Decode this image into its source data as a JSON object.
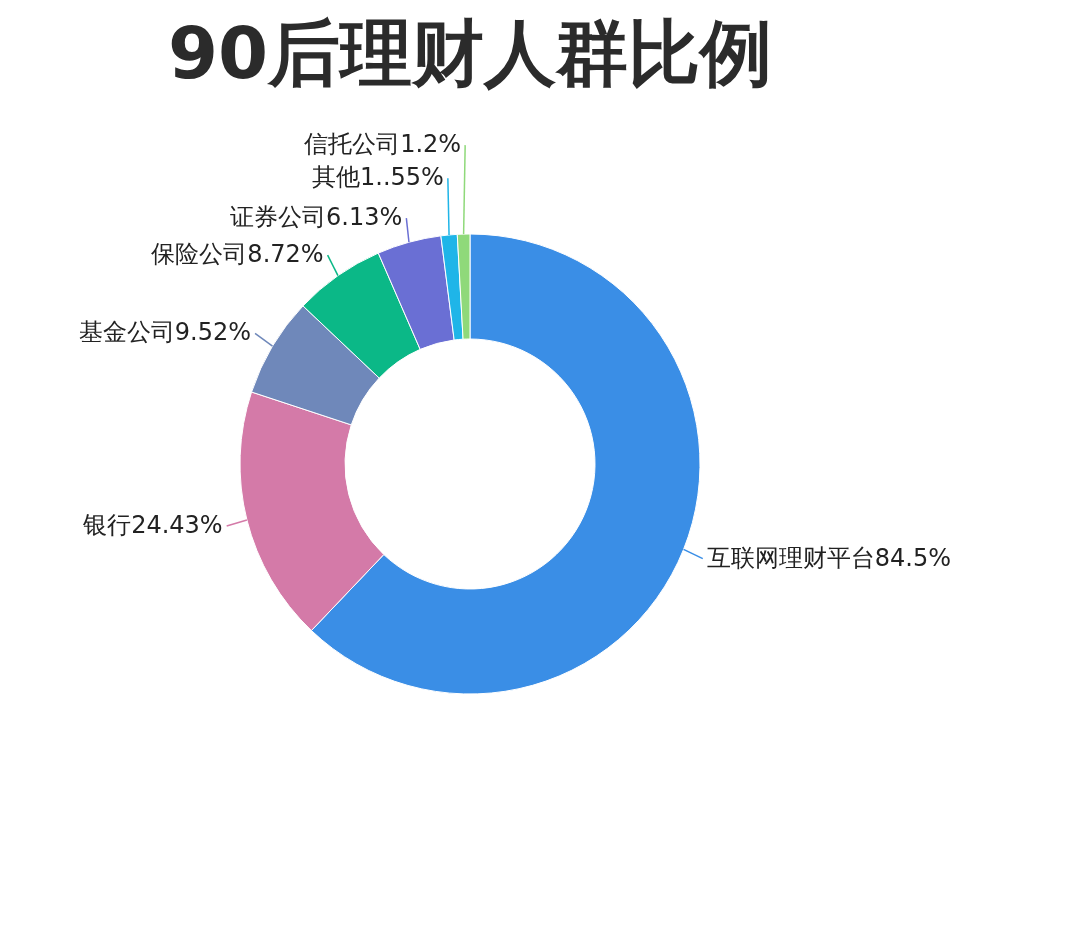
{
  "chart_data": {
    "type": "donut",
    "title": "90后理财人群比例",
    "categories": [
      "互联网理财平台",
      "银行",
      "基金公司",
      "保险公司",
      "证券公司",
      "其他",
      "信托公司"
    ],
    "values": [
      84.5,
      24.43,
      9.52,
      8.72,
      6.13,
      1.55,
      1.2
    ],
    "value_labels": [
      "84.5%",
      "24.43%",
      "9.52%",
      "8.72%",
      "6.13%",
      "1..55%",
      "1.2%"
    ],
    "colors": [
      "#3a8ee6",
      "#d47aa8",
      "#6f88ba",
      "#0bb887",
      "#6a6fd4",
      "#1fb5e8",
      "#8fd97a"
    ],
    "legend": false
  }
}
